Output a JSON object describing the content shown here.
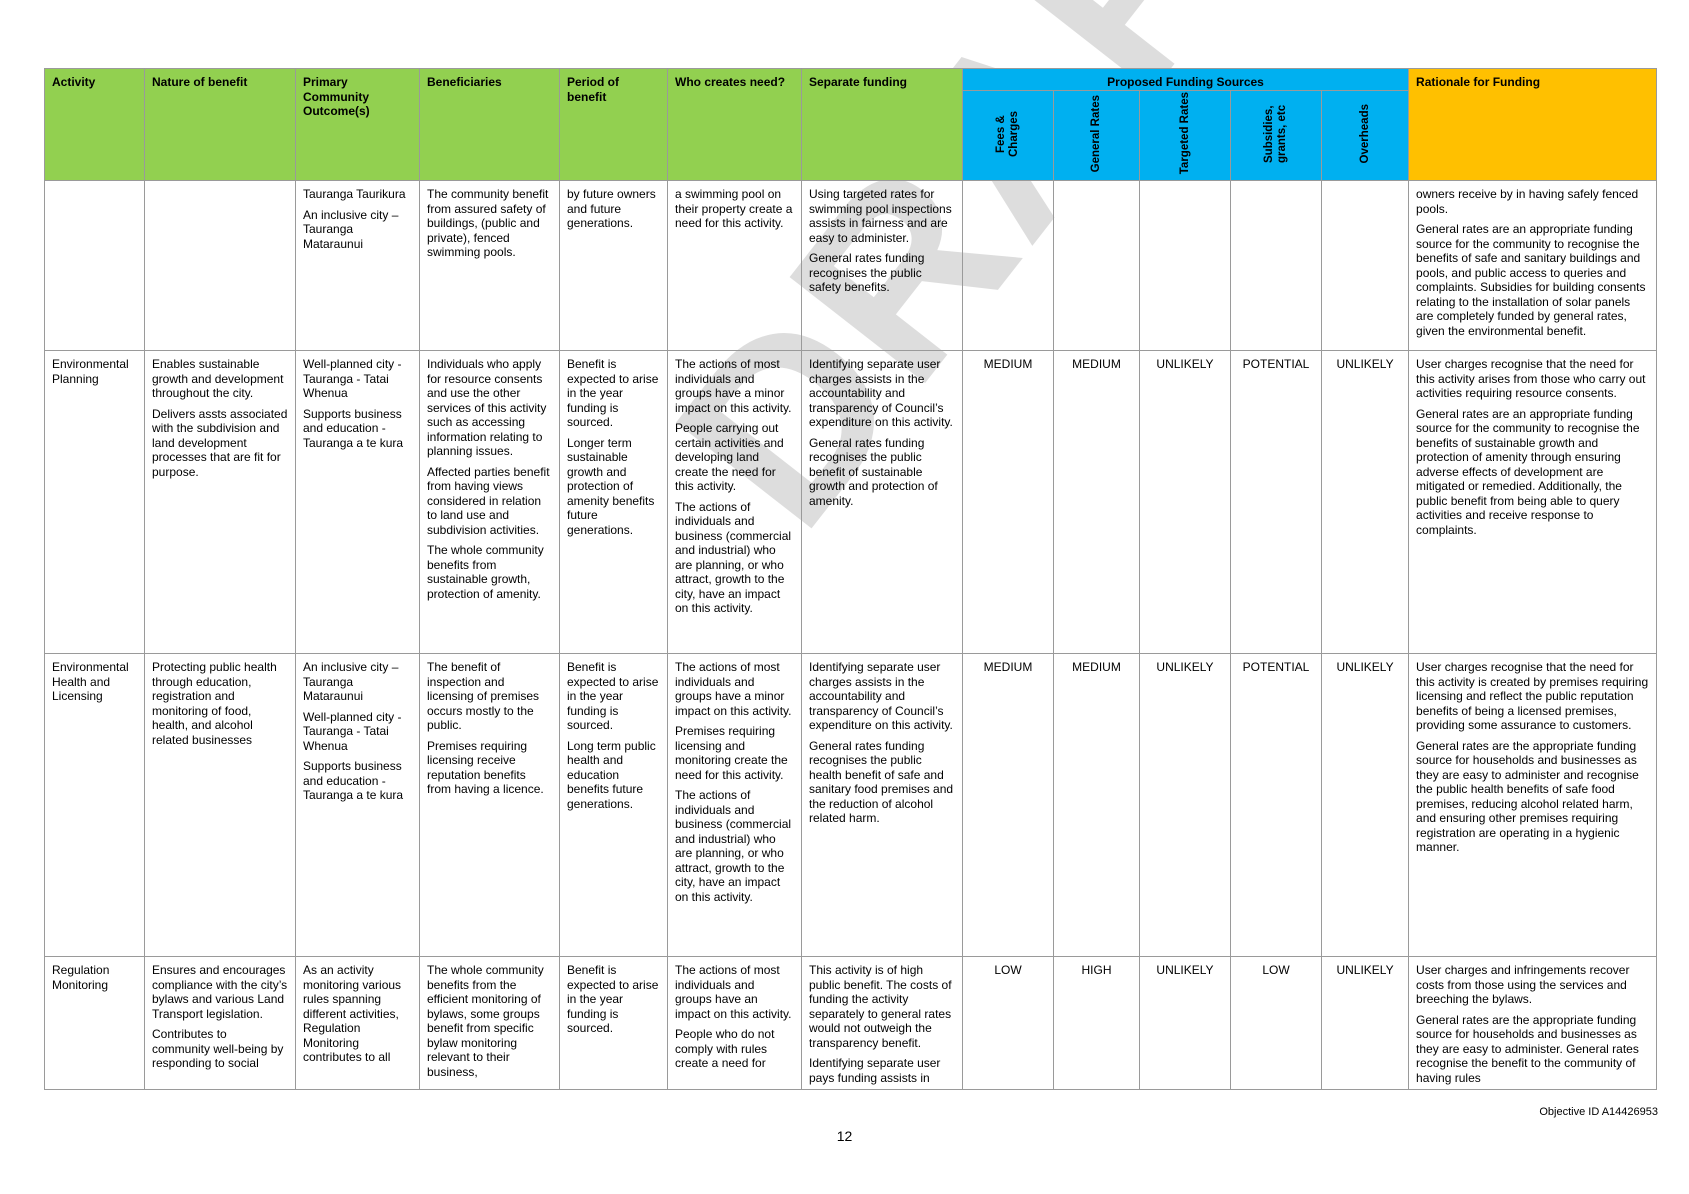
{
  "headers": {
    "activity": "Activity",
    "nature": "Nature of benefit",
    "outcomes": "Primary Community Outcome(s)",
    "beneficiaries": "Beneficiaries",
    "period": "Period of benefit",
    "who": "Who creates need?",
    "separate": "Separate funding",
    "proposed": "Proposed Funding Sources",
    "rationale": "Rationale for Funding",
    "fees": "Fees & Charges",
    "general": "General Rates",
    "targeted": "Targeted Rates",
    "subsidies": "Subsidies, grants, etc",
    "overheads": "Overheads"
  },
  "rows": [
    {
      "activity": "",
      "nature": [],
      "outcomes": [
        "Tauranga Taurikura",
        "An inclusive city – Tauranga Mataraunui"
      ],
      "beneficiaries": [
        "The community benefit from assured safety of buildings, (public and private), fenced swimming pools."
      ],
      "period": [
        "by future owners and future generations."
      ],
      "who": [
        "a swimming pool on their property create a need for this activity."
      ],
      "separate": [
        "Using targeted rates for swimming pool inspections assists in fairness and are easy to administer.",
        "General rates funding recognises the public safety benefits."
      ],
      "fees": "",
      "general": "",
      "targeted": "",
      "subsidies": "",
      "overheads": "",
      "rationale": [
        "owners receive by in having safely fenced pools.",
        "General rates are an appropriate funding source for the community to recognise the benefits of safe and sanitary buildings and pools, and public access to queries and complaints. Subsidies for building consents relating to the installation of solar panels are completely funded by general rates, given the environmental benefit."
      ]
    },
    {
      "activity": "Environmental Planning",
      "nature": [
        "Enables sustainable growth and development throughout the city.",
        "Delivers assts associated with the subdivision and land development processes that are fit for purpose."
      ],
      "outcomes": [
        "Well-planned city - Tauranga - Tatai Whenua",
        "Supports business and education - Tauranga a te kura"
      ],
      "beneficiaries": [
        "Individuals who apply for resource consents and use the other services of this activity such as accessing information relating to planning issues.",
        "Affected parties benefit from having views considered in relation to land use and subdivision activities.",
        "The whole community benefits from sustainable growth, protection of amenity."
      ],
      "period": [
        "Benefit is expected to arise in the year funding is sourced.",
        "Longer term sustainable growth and protection of amenity benefits future generations."
      ],
      "who": [
        "The actions of most individuals and groups have a minor impact on this activity.",
        "People carrying out certain activities and developing land create the need for this activity.",
        "The actions of individuals and business (commercial and industrial) who are planning, or who attract, growth to the city, have an impact on this activity."
      ],
      "separate": [
        "Identifying separate user charges assists in the accountability and transparency of Council’s expenditure on this activity.",
        "General rates funding recognises the public benefit of sustainable growth and protection of amenity."
      ],
      "fees": "MEDIUM",
      "general": "MEDIUM",
      "targeted": "UNLIKELY",
      "subsidies": "POTENTIAL",
      "overheads": "UNLIKELY",
      "rationale": [
        "User charges recognise that the need for this activity arises from those who carry out activities requiring resource consents.",
        "General rates are an appropriate funding source for the community to recognise the benefits of sustainable growth and protection of amenity through ensuring adverse effects of development are mitigated or remedied. Additionally, the public benefit from being able to query activities and receive response to complaints."
      ]
    },
    {
      "activity": "Environmental Health and Licensing",
      "nature": [
        "Protecting public health through education, registration and monitoring of food, health, and alcohol related businesses"
      ],
      "outcomes": [
        "An inclusive city – Tauranga Mataraunui",
        "Well-planned city - Tauranga - Tatai Whenua",
        "Supports business and education - Tauranga a te kura"
      ],
      "beneficiaries": [
        "The benefit of inspection and licensing of premises occurs mostly to the public.",
        "Premises requiring licensing receive reputation benefits from having a licence."
      ],
      "period": [
        "Benefit is expected to arise in the year funding is sourced.",
        "Long term public health and education benefits future generations."
      ],
      "who": [
        "The actions of most individuals and groups have a minor impact on this activity.",
        "Premises requiring licensing and monitoring create the need for this activity.",
        "The actions of individuals and business (commercial and industrial) who are planning, or who attract, growth to the city, have an impact on this activity."
      ],
      "separate": [
        "Identifying separate user charges assists in the accountability and transparency of Council’s expenditure on this activity.",
        "General rates funding recognises the public health benefit of safe and sanitary food premises and the reduction of alcohol related harm."
      ],
      "fees": "MEDIUM",
      "general": "MEDIUM",
      "targeted": "UNLIKELY",
      "subsidies": "POTENTIAL",
      "overheads": "UNLIKELY",
      "rationale": [
        "User charges recognise that the need for this activity is created by premises requiring licensing and reflect the public reputation benefits of being a licensed premises, providing some assurance to customers.",
        "General rates are the appropriate funding source for households and businesses as they are easy to administer and recognise the public health benefits of safe food premises, reducing alcohol related harm, and ensuring other premises requiring registration are operating in a hygienic manner."
      ]
    },
    {
      "activity": "Regulation Monitoring",
      "nature": [
        "Ensures and encourages compliance with the city’s bylaws and various Land Transport legislation.",
        "Contributes to community well-being by responding to social"
      ],
      "outcomes": [
        "As an activity monitoring various rules spanning different activities, Regulation Monitoring contributes to all"
      ],
      "beneficiaries": [
        "The whole community benefits from the efficient monitoring of bylaws, some groups benefit from specific bylaw monitoring relevant to their business,"
      ],
      "period": [
        "Benefit is expected to arise in the year funding is sourced."
      ],
      "who": [
        "The actions of most individuals and groups have an impact on this activity.",
        "People who do not comply with rules create a need for"
      ],
      "separate": [
        "This activity is of high public benefit. The costs of funding the activity separately to general rates would not outweigh the transparency benefit.",
        "Identifying separate user pays funding assists in"
      ],
      "fees": "LOW",
      "general": "HIGH",
      "targeted": "UNLIKELY",
      "subsidies": "LOW",
      "overheads": "UNLIKELY",
      "rationale": [
        "User charges and infringements recover costs from those using the services and breeching the bylaws.",
        "General rates are the appropriate funding source for households and businesses as they are easy to administer. General rates recognise the benefit to the community of having rules"
      ]
    }
  ],
  "watermark": "DRAFT",
  "footer": {
    "objective_id": "Objective ID A14426953",
    "page_number": "12"
  }
}
